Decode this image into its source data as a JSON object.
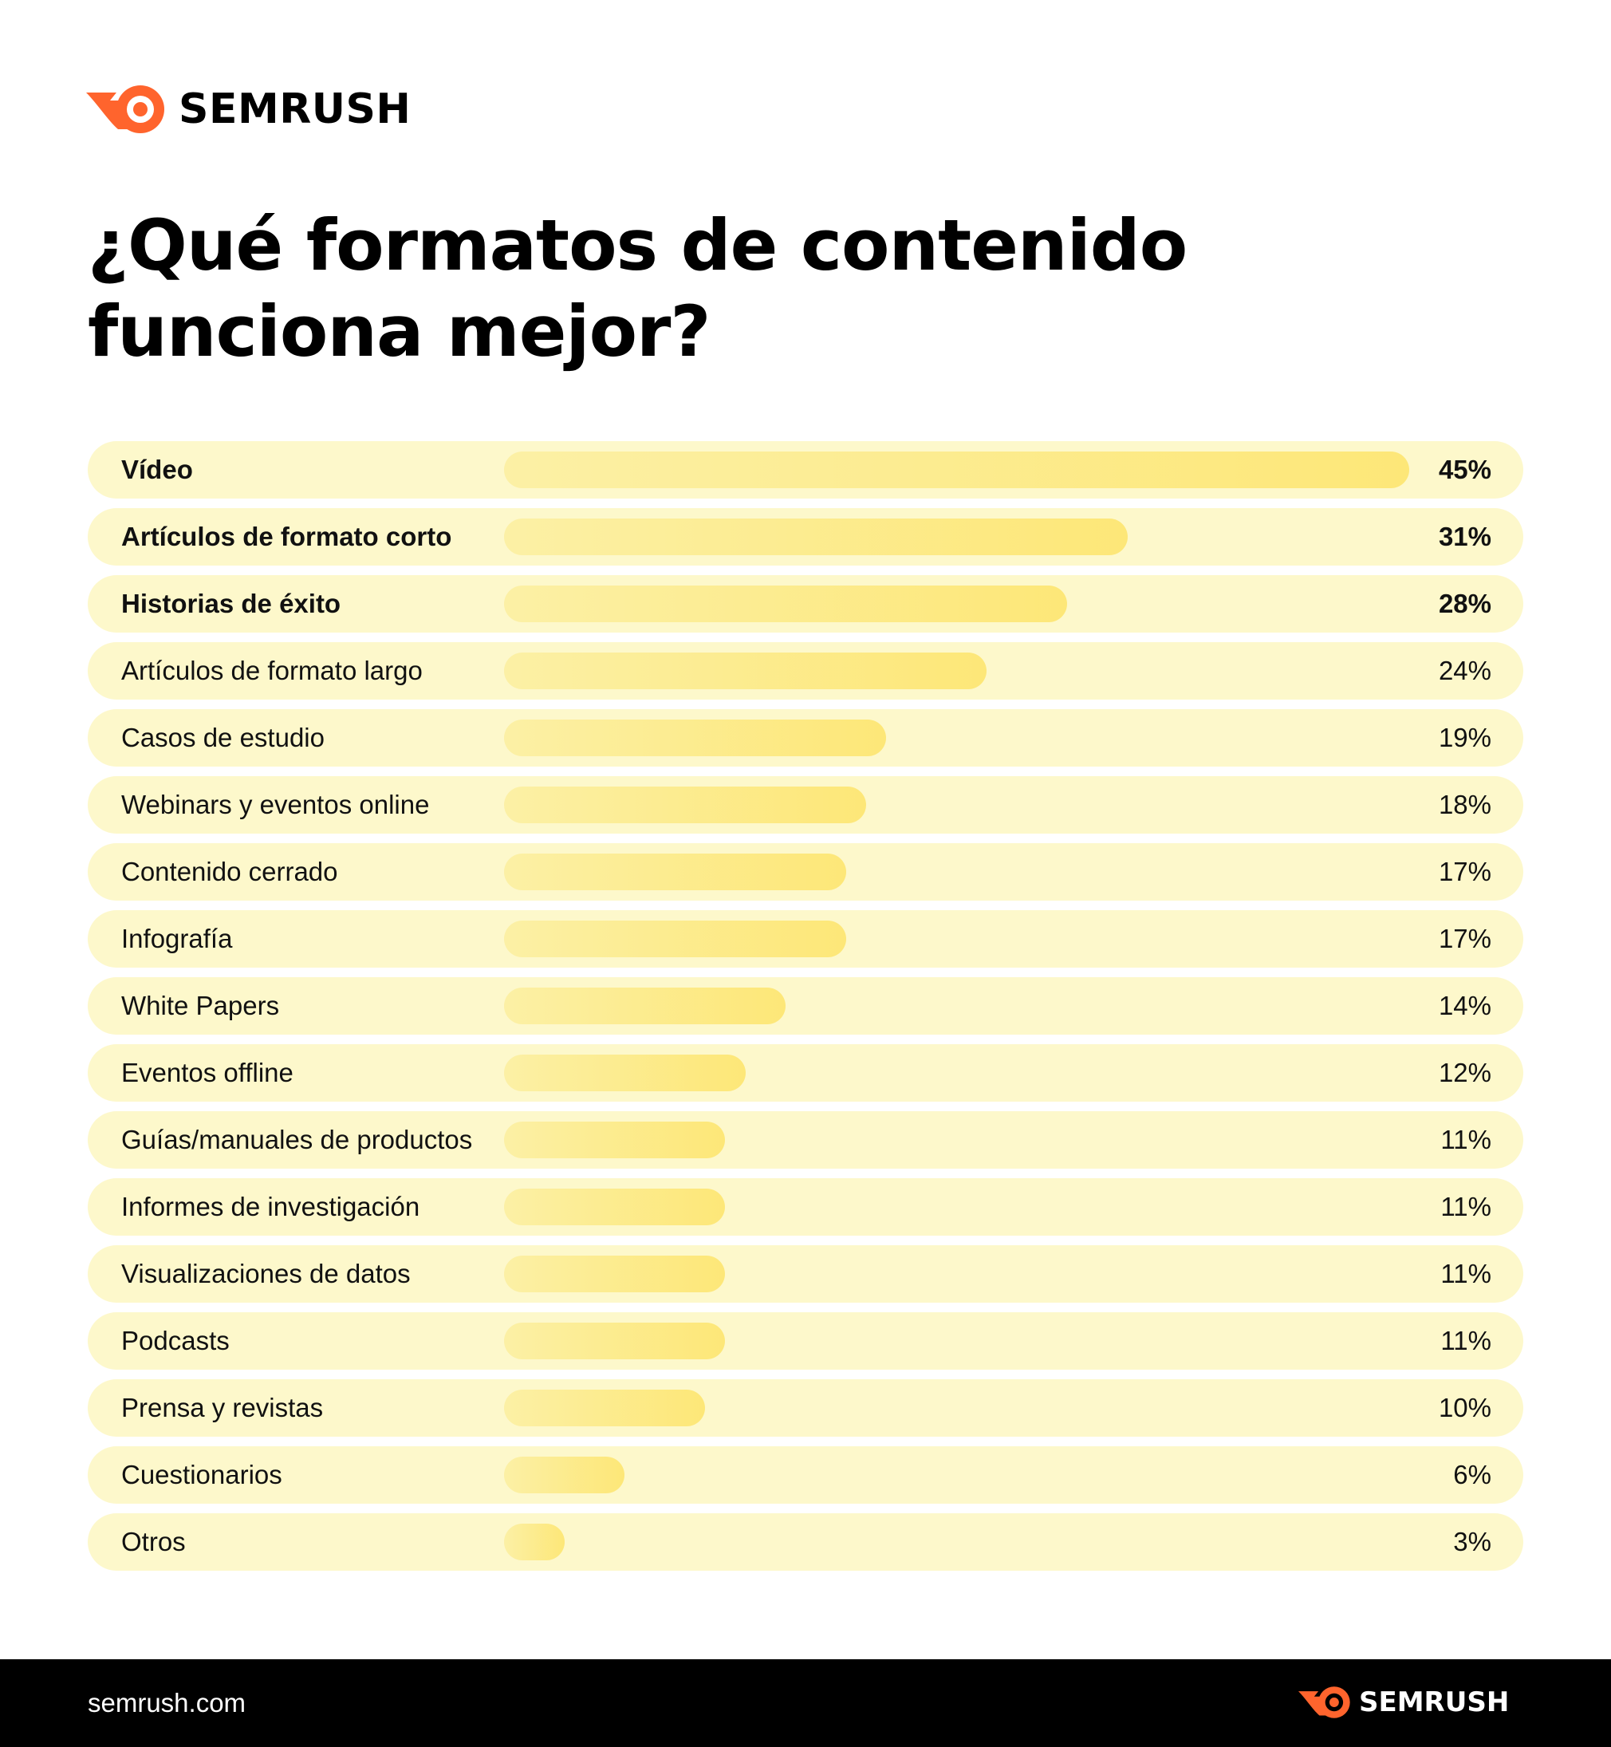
{
  "brand": {
    "name": "SEMRUSH",
    "accent": "#ff642d",
    "site": "semrush.com"
  },
  "title_lines": [
    "¿Qué formatos de contenido",
    "funciona mejor?"
  ],
  "colors": {
    "row_bg": "#fdf8cb",
    "bar_start": "#fcf0a5",
    "bar_end": "#fde778",
    "footer_bg": "#000000"
  },
  "chart_data": {
    "type": "bar",
    "orientation": "horizontal",
    "title": "¿Qué formatos de contenido funciona mejor?",
    "xlabel": "",
    "ylabel": "",
    "xlim": [
      0,
      46
    ],
    "grid": false,
    "legend": "none",
    "bold_top_n": 3,
    "categories": [
      "Vídeo",
      "Artículos de formato corto",
      "Historias de éxito",
      "Artículos de formato largo",
      "Casos de estudio",
      "Webinars y eventos online",
      "Contenido cerrado",
      "Infografía",
      "White Papers",
      "Eventos offline",
      "Guías/manuales de productos",
      "Informes de investigación",
      "Visualizaciones de datos",
      "Podcasts",
      "Prensa y revistas",
      "Cuestionarios",
      "Otros"
    ],
    "values": [
      45,
      31,
      28,
      24,
      19,
      18,
      17,
      17,
      14,
      12,
      11,
      11,
      11,
      11,
      10,
      6,
      3
    ],
    "value_labels": [
      "45%",
      "31%",
      "28%",
      "24%",
      "19%",
      "18%",
      "17%",
      "17%",
      "14%",
      "12%",
      "11%",
      "11%",
      "11%",
      "11%",
      "10%",
      "6%",
      "3%"
    ]
  }
}
